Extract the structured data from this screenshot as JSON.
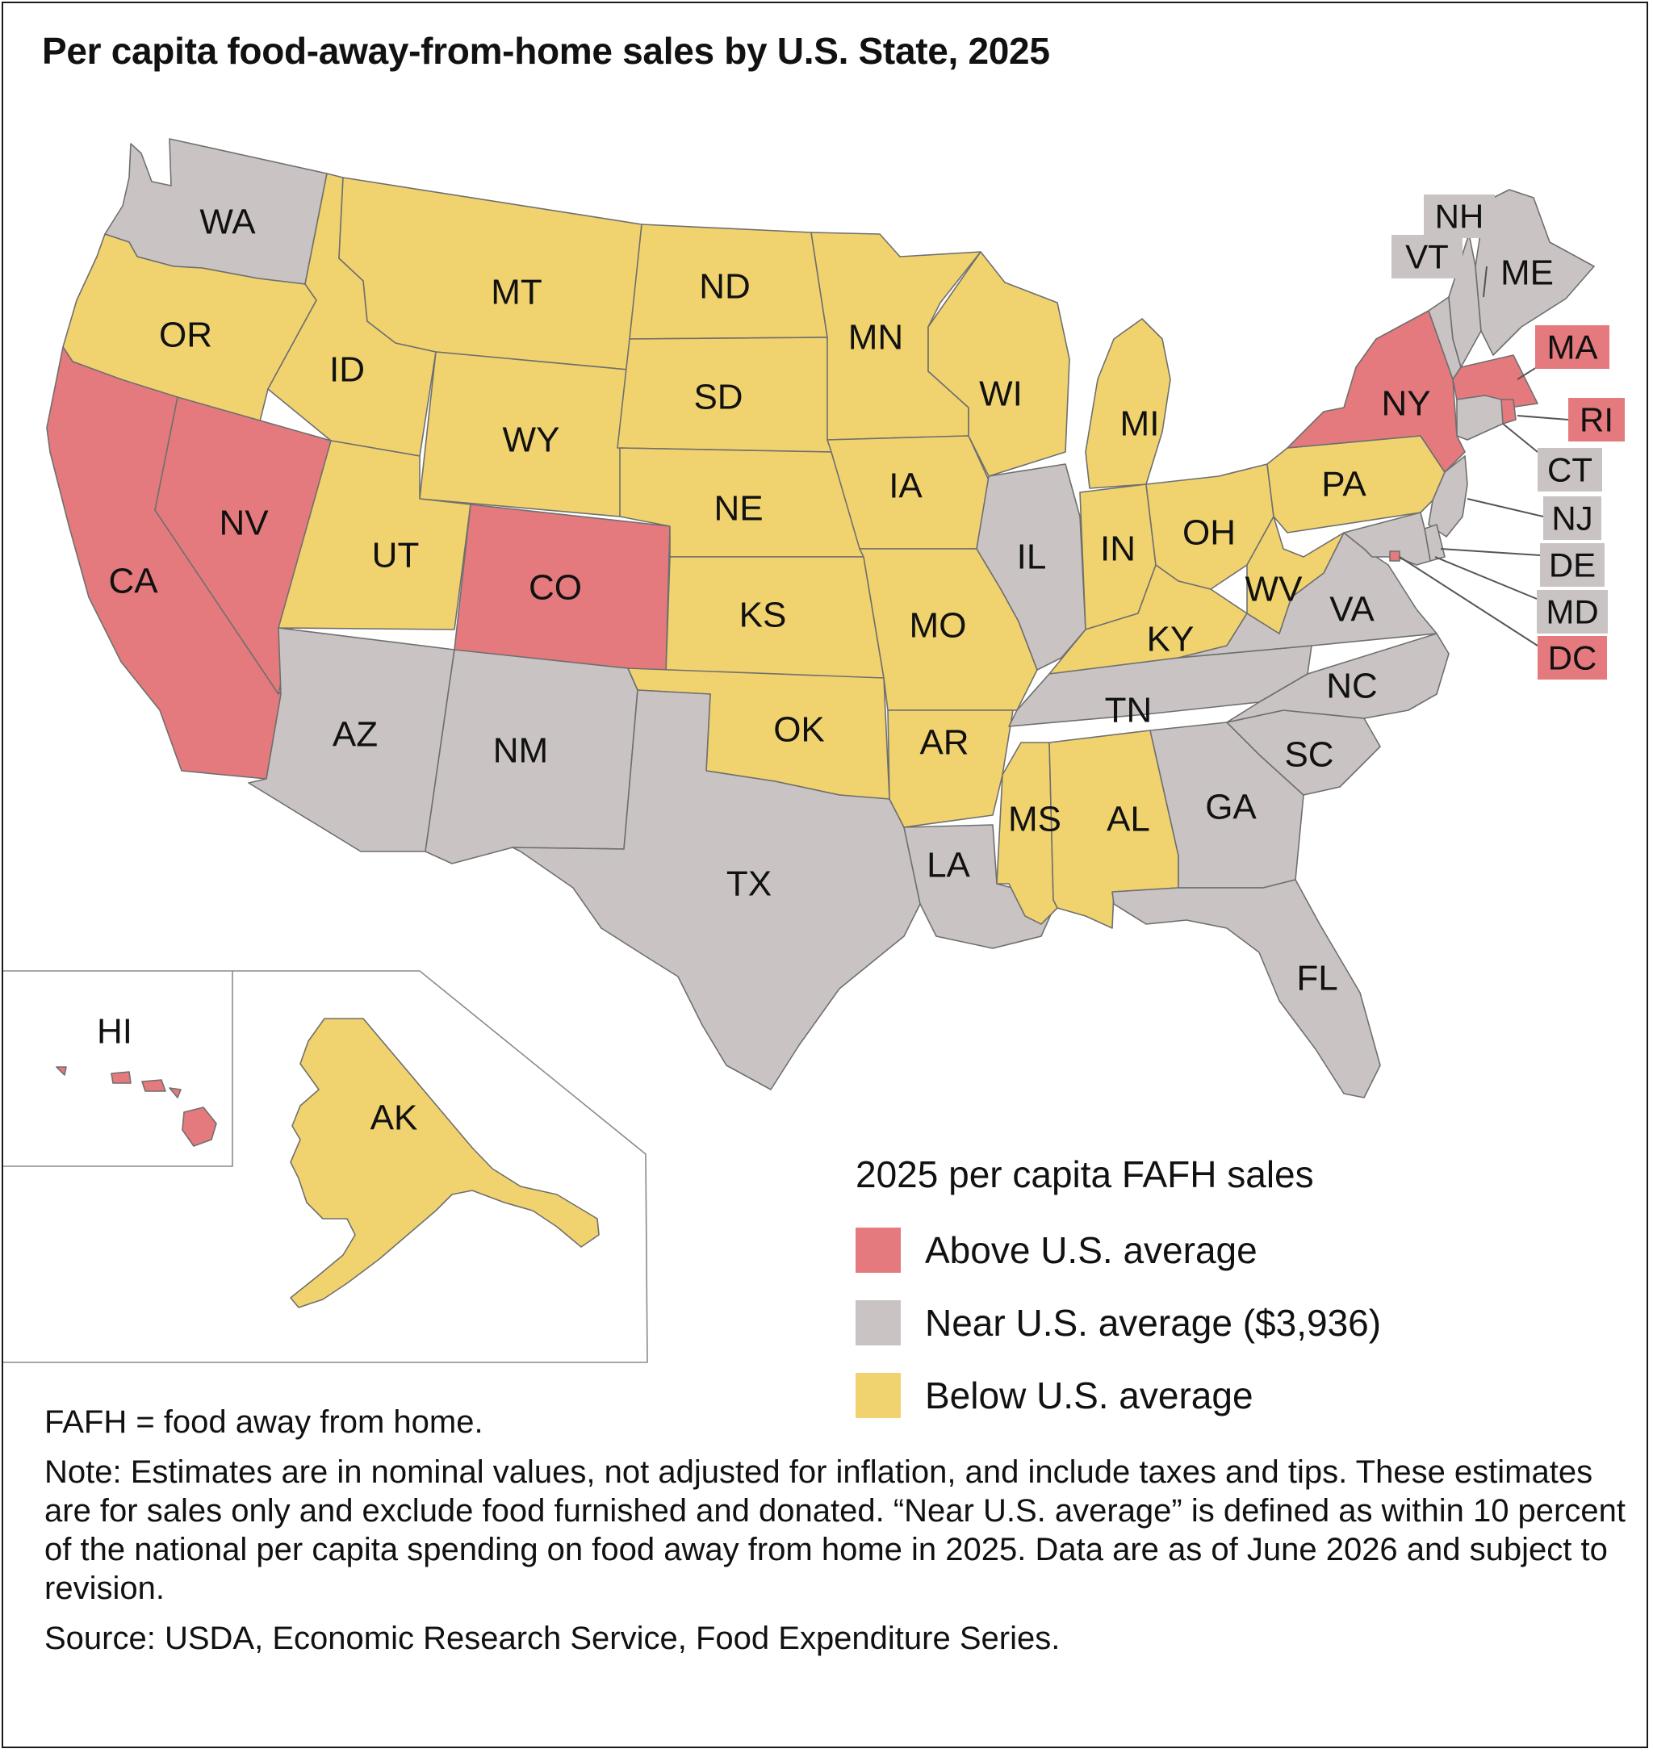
{
  "title": "Per capita food-away-from-home sales by U.S. State, 2025",
  "colors": {
    "above": "#e47a7d",
    "near": "#c9c4c3",
    "below": "#f0d36f"
  },
  "legend": {
    "title": "2025 per capita FAFH sales",
    "items": [
      {
        "key": "above",
        "label": "Above U.S. average"
      },
      {
        "key": "near",
        "label": "Near U.S. average ($3,936)"
      },
      {
        "key": "below",
        "label": "Below U.S. average"
      }
    ]
  },
  "states": [
    {
      "abbr": "WA",
      "category": "near"
    },
    {
      "abbr": "OR",
      "category": "below"
    },
    {
      "abbr": "CA",
      "category": "above"
    },
    {
      "abbr": "NV",
      "category": "above"
    },
    {
      "abbr": "ID",
      "category": "below"
    },
    {
      "abbr": "MT",
      "category": "below"
    },
    {
      "abbr": "WY",
      "category": "below"
    },
    {
      "abbr": "UT",
      "category": "below"
    },
    {
      "abbr": "CO",
      "category": "above"
    },
    {
      "abbr": "AZ",
      "category": "near"
    },
    {
      "abbr": "NM",
      "category": "near"
    },
    {
      "abbr": "ND",
      "category": "below"
    },
    {
      "abbr": "SD",
      "category": "below"
    },
    {
      "abbr": "NE",
      "category": "below"
    },
    {
      "abbr": "KS",
      "category": "below"
    },
    {
      "abbr": "OK",
      "category": "below"
    },
    {
      "abbr": "TX",
      "category": "near"
    },
    {
      "abbr": "MN",
      "category": "below"
    },
    {
      "abbr": "IA",
      "category": "below"
    },
    {
      "abbr": "MO",
      "category": "below"
    },
    {
      "abbr": "AR",
      "category": "below"
    },
    {
      "abbr": "LA",
      "category": "near"
    },
    {
      "abbr": "WI",
      "category": "below"
    },
    {
      "abbr": "IL",
      "category": "near"
    },
    {
      "abbr": "MI",
      "category": "below"
    },
    {
      "abbr": "IN",
      "category": "below"
    },
    {
      "abbr": "OH",
      "category": "below"
    },
    {
      "abbr": "KY",
      "category": "below"
    },
    {
      "abbr": "TN",
      "category": "near"
    },
    {
      "abbr": "MS",
      "category": "below"
    },
    {
      "abbr": "AL",
      "category": "below"
    },
    {
      "abbr": "GA",
      "category": "near"
    },
    {
      "abbr": "FL",
      "category": "near"
    },
    {
      "abbr": "SC",
      "category": "near"
    },
    {
      "abbr": "NC",
      "category": "near"
    },
    {
      "abbr": "VA",
      "category": "near"
    },
    {
      "abbr": "WV",
      "category": "below"
    },
    {
      "abbr": "PA",
      "category": "below"
    },
    {
      "abbr": "NY",
      "category": "above"
    },
    {
      "abbr": "VT",
      "category": "near"
    },
    {
      "abbr": "NH",
      "category": "near"
    },
    {
      "abbr": "ME",
      "category": "near"
    },
    {
      "abbr": "MA",
      "category": "above"
    },
    {
      "abbr": "RI",
      "category": "above"
    },
    {
      "abbr": "CT",
      "category": "near"
    },
    {
      "abbr": "NJ",
      "category": "near"
    },
    {
      "abbr": "DE",
      "category": "near"
    },
    {
      "abbr": "MD",
      "category": "near"
    },
    {
      "abbr": "DC",
      "category": "above"
    },
    {
      "abbr": "HI",
      "category": "above"
    },
    {
      "abbr": "AK",
      "category": "below"
    }
  ],
  "notes": {
    "abbreviation": "FAFH = food away from home.",
    "note": "Note: Estimates are in nominal values, not adjusted for inflation, and include taxes and tips. These estimates are for sales only and exclude food furnished and donated. “Near U.S. average” is defined as within 10 percent of the national per capita spending on food away from home in 2025. Data are as of June 2026 and subject to revision.",
    "source": "Source: USDA, Economic Research Service, Food Expenditure Series."
  }
}
